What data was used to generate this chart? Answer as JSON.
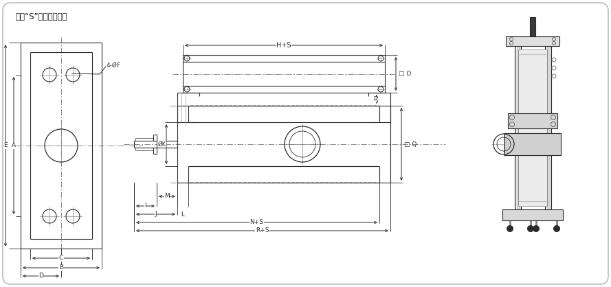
{
  "bg_color": "#f8f8f8",
  "line_color": "#2a2a2a",
  "dim_color": "#2a2a2a",
  "note_text": "注：“S”為缸的總行程",
  "label_4F": "4-ØF",
  "label_K": "ØK",
  "label_A": "A",
  "label_B": "B",
  "label_C": "C",
  "label_D": "D",
  "label_E": "E",
  "label_M": "M",
  "label_I": "I",
  "label_J": "J",
  "label_L": "L",
  "label_NS": "N+S",
  "label_RS": "R+S",
  "label_HS": "H+S",
  "label_O": "□ O",
  "label_Q": "□ Q",
  "label_P": "P"
}
